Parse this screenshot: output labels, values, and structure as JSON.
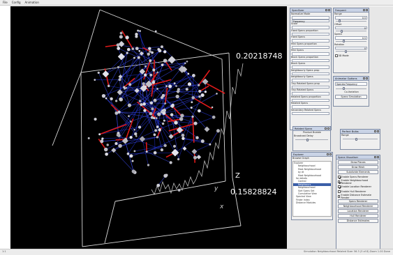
{
  "menu": [
    "File",
    "Config",
    "Animation"
  ],
  "viewport": {
    "label_top": "0.20218748",
    "label_bottom": "0.15828824",
    "axis_z": "Z",
    "axis_y": "y",
    "axis_x": "x"
  },
  "panels": {
    "specsizer": {
      "title": "SpecSizer",
      "rows": [
        {
          "label": "Normalize Mode",
          "value": ""
        },
        {
          "label": "",
          "value": "Frequency"
        },
        {
          "label": "Scale",
          "value": ""
        },
        {
          "label": "Fixed Specs proportion",
          "value": ""
        },
        {
          "label": "Fixed Specs",
          "value": ""
        },
        {
          "label": "Mini Specs proportion",
          "value": ""
        },
        {
          "label": "Mini Specs",
          "value": ""
        },
        {
          "label": "Block Specs proportion",
          "value": ""
        },
        {
          "label": "Block Specs",
          "value": ""
        },
        {
          "label": "Neighbourly Specs prop",
          "value": ""
        },
        {
          "label": "Neighbourly Specs",
          "value": ""
        },
        {
          "label": "Tiny Related Specs prop",
          "value": ""
        },
        {
          "label": "Tiny Related Specs",
          "value": ""
        },
        {
          "label": "Related Specs proportion",
          "value": ""
        },
        {
          "label": "Related Specs",
          "value": ""
        },
        {
          "label": "Secondary Related Specs",
          "value": ""
        }
      ]
    },
    "frequent": {
      "title": "Frequent",
      "fields": [
        {
          "label": "Range",
          "value": "0.5"
        },
        {
          "label": "Offset",
          "value": "0"
        },
        {
          "label": "Speed",
          "value": "0.5"
        },
        {
          "label": "Rotation",
          "value": "0"
        }
      ],
      "check": "3D Mode"
    },
    "animator": {
      "title": "Animator Options",
      "select": "Species Frequency",
      "label": "Co-Variation",
      "button": "Specs Simulation"
    },
    "related": {
      "title": "Related Specs",
      "label1": "Product Bubble",
      "label2": "Broadcast Delay"
    },
    "pickup": {
      "title": "Perfect Bulbs",
      "label": "Range"
    },
    "explorer": {
      "title": "Explorer",
      "sub": "Browse Graph",
      "nodes": [
        "Explorer",
        "Neighbourhood",
        "Most Neighbourhood",
        "by dt",
        "Most Neighbourhood",
        "for details",
        "Control",
        "Neighbours",
        "Neighbourhood",
        "Sort Specs Set",
        "Cumulative View",
        "Spectral View",
        "Finder Index",
        "Distance Modules"
      ],
      "selected": "Neighbours"
    },
    "specs": {
      "title": "Specs Visualiser",
      "buttons_top": [
        "Draw Planes",
        "Draw Mesh",
        "Subdivide Elements"
      ],
      "checks": [
        {
          "label": "Enable Specs Renderer",
          "on": true
        },
        {
          "label": "Enable Neighbourhood Renderer",
          "on": true
        },
        {
          "label": "Enable Location Renderer",
          "on": true
        },
        {
          "label": "Enable Hull Renderer",
          "on": false
        },
        {
          "label": "Enable Distance Estimate Render",
          "on": false
        }
      ],
      "buttons_bottom": [
        "Specs Renderer",
        "Neighbourhood Renderer",
        "Location Renderer",
        "Hull Renderer",
        "Distance Estimates"
      ]
    }
  },
  "statusbar": {
    "left": "1:1",
    "right": "Simulation Neighbourhood Related Sizer 56.3 (3 of 8)  Zoom  1.00  Done"
  }
}
